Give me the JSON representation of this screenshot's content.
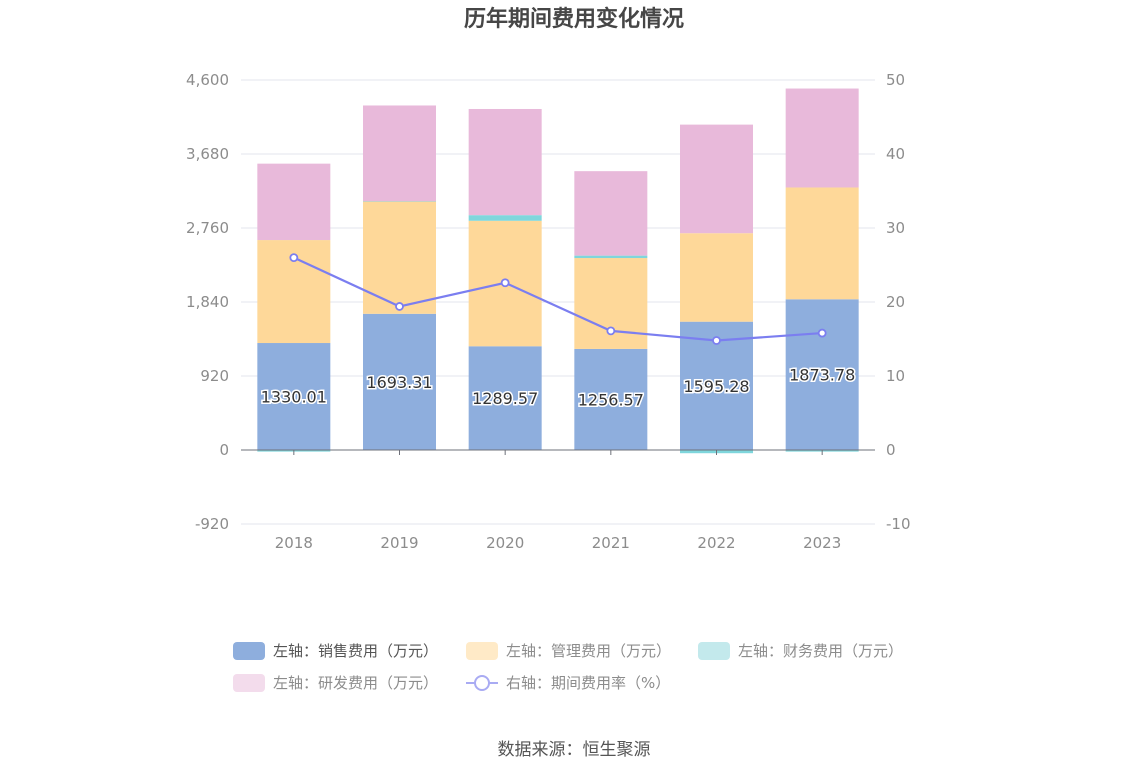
{
  "title": "历年期间费用变化情况",
  "source": "数据来源：恒生聚源",
  "chart_data": {
    "type": "bar",
    "stacked": true,
    "categories": [
      "2018",
      "2019",
      "2020",
      "2021",
      "2022",
      "2023"
    ],
    "left_axis": {
      "ticks": [
        "4,600",
        "3,680",
        "2,760",
        "1,840",
        "920",
        "0",
        "-920"
      ],
      "ylim": [
        -920,
        4600
      ]
    },
    "right_axis": {
      "ticks": [
        "50",
        "40",
        "30",
        "20",
        "10",
        "0",
        "-10"
      ],
      "ylim": [
        -10,
        50
      ]
    },
    "series": [
      {
        "name": "左轴：销售费用（万元）",
        "axis": "left",
        "type": "bar",
        "color": "#8eaedd",
        "values": [
          1330.01,
          1693.31,
          1289.57,
          1256.57,
          1595.28,
          1873.78
        ],
        "labels": [
          "1330.01",
          "1693.31",
          "1289.57",
          "1256.57",
          "1595.28",
          "1873.78"
        ]
      },
      {
        "name": "左轴：管理费用（万元）",
        "axis": "left",
        "type": "bar",
        "color": "#fed899",
        "values": [
          1280,
          1400,
          1560,
          1130,
          1100,
          1390
        ]
      },
      {
        "name": "左轴：财务费用（万元）",
        "axis": "left",
        "type": "bar",
        "color": "#7fd6dc",
        "values": [
          -20,
          0,
          70,
          30,
          -40,
          -20
        ]
      },
      {
        "name": "左轴：研发费用（万元）",
        "axis": "left",
        "type": "bar",
        "color": "#e8b9da",
        "values": [
          950,
          1190,
          1320,
          1050,
          1350,
          1230
        ]
      },
      {
        "name": "右轴：期间费用率（%）",
        "axis": "right",
        "type": "line",
        "color": "#7b7ef0",
        "values": [
          26.0,
          19.4,
          22.6,
          16.1,
          14.8,
          15.8
        ]
      }
    ],
    "legend_position": "bottom",
    "grid": true
  }
}
